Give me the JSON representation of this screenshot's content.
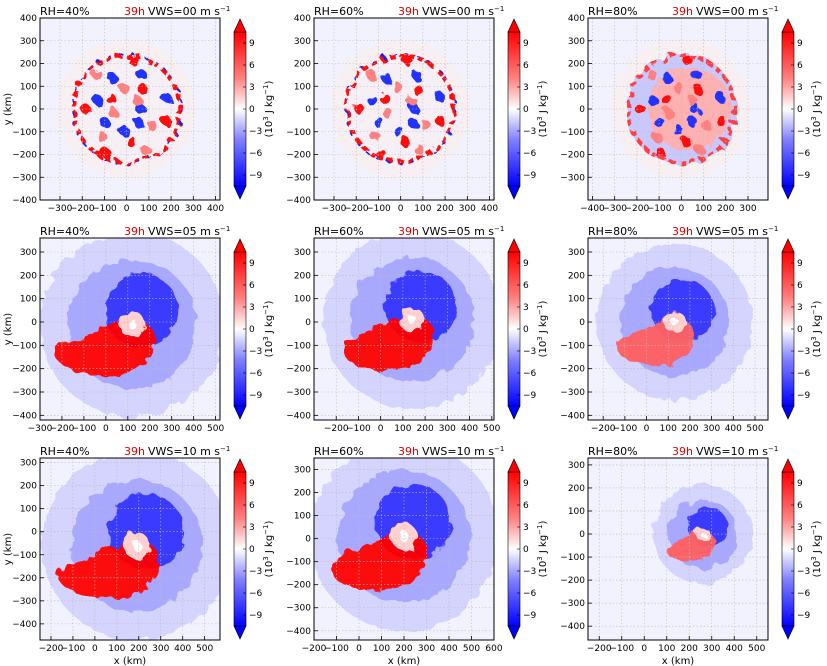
{
  "chart_data": {
    "type": "heatmap",
    "rows": 3,
    "cols": 3,
    "colorbar": {
      "ticks": [
        9,
        6,
        3,
        0,
        -3,
        -6,
        -9
      ],
      "label_base": "(10",
      "label_exp": "3",
      "label_rest": " J kg",
      "label_exp2": "−1",
      "label_close": ")",
      "range": [
        -10.5,
        10.5
      ],
      "colors": {
        "max": "#ff0000",
        "mid": "#ffffff",
        "min": "#0000ff"
      }
    },
    "x_label": "x (km)",
    "y_label": "y (km)",
    "panels": [
      {
        "rh": "RH=40%",
        "time": "39h",
        "vws": "VWS=00 m s",
        "vws_exp": "−1",
        "xlim": [
          -390,
          420
        ],
        "ylim": [
          -400,
          400
        ],
        "xticks": [
          -300,
          -200,
          -100,
          0,
          100,
          200,
          300,
          400
        ],
        "yticks": [
          -400,
          -300,
          -200,
          -100,
          0,
          100,
          200,
          300,
          400
        ],
        "storm": {
          "cx": 0,
          "cy": 0,
          "radius": 250,
          "type": "ring"
        }
      },
      {
        "rh": "RH=60%",
        "time": "39h",
        "vws": "VWS=00 m s",
        "vws_exp": "−1",
        "xlim": [
          -390,
          420
        ],
        "ylim": [
          -400,
          400
        ],
        "xticks": [
          -300,
          -200,
          -100,
          0,
          100,
          200,
          300,
          400
        ],
        "yticks": [
          -400,
          -300,
          -200,
          -100,
          0,
          100,
          200,
          300,
          400
        ],
        "storm": {
          "cx": 0,
          "cy": 0,
          "radius": 250,
          "type": "ring"
        }
      },
      {
        "rh": "RH=80%",
        "time": "39h",
        "vws": "VWS=00 m s",
        "vws_exp": "−1",
        "xlim": [
          -420,
          390
        ],
        "ylim": [
          -400,
          400
        ],
        "xticks": [
          -400,
          -300,
          -200,
          -100,
          0,
          100,
          200,
          300
        ],
        "yticks": [
          -300,
          -200,
          -100,
          0,
          100,
          200,
          300,
          400
        ],
        "storm": {
          "cx": 0,
          "cy": 0,
          "radius": 250,
          "type": "spiral"
        }
      },
      {
        "rh": "RH=40%",
        "time": "39h",
        "vws": "VWS=05 m s",
        "vws_exp": "−1",
        "xlim": [
          -300,
          520
        ],
        "ylim": [
          -420,
          360
        ],
        "xticks": [
          -300,
          -200,
          -100,
          0,
          100,
          200,
          300,
          400,
          500
        ],
        "yticks": [
          -400,
          -300,
          -200,
          -100,
          0,
          100,
          200,
          300
        ],
        "storm": {
          "cx": 120,
          "cy": -10,
          "radius": 420,
          "type": "sheared-heavy"
        }
      },
      {
        "rh": "RH=60%",
        "time": "39h",
        "vws": "VWS=05 m s",
        "vws_exp": "−1",
        "xlim": [
          -300,
          510
        ],
        "ylim": [
          -420,
          360
        ],
        "xticks": [
          -200,
          -100,
          0,
          100,
          200,
          300,
          400,
          500
        ],
        "yticks": [
          -400,
          -300,
          -200,
          -100,
          0,
          100,
          200,
          300
        ],
        "storm": {
          "cx": 140,
          "cy": 10,
          "radius": 400,
          "type": "sheared-tail"
        }
      },
      {
        "rh": "RH=80%",
        "time": "39h",
        "vws": "VWS=05 m s",
        "vws_exp": "−1",
        "xlim": [
          -270,
          560
        ],
        "ylim": [
          -420,
          360
        ],
        "xticks": [
          -200,
          -100,
          0,
          100,
          200,
          300,
          400,
          500
        ],
        "yticks": [
          -400,
          -300,
          -200,
          -100,
          0,
          100,
          200,
          300
        ],
        "storm": {
          "cx": 130,
          "cy": 0,
          "radius": 360,
          "type": "sheared-light"
        }
      },
      {
        "rh": "RH=40%",
        "time": "39h",
        "vws": "VWS=10 m s",
        "vws_exp": "−1",
        "xlim": [
          -250,
          570
        ],
        "ylim": [
          -470,
          320
        ],
        "xticks": [
          -200,
          -100,
          0,
          100,
          200,
          300,
          400,
          500
        ],
        "yticks": [
          -400,
          -300,
          -200,
          -100,
          0,
          100,
          200,
          300
        ],
        "storm": {
          "cx": 190,
          "cy": -60,
          "radius": 430,
          "type": "sheared-heavy"
        }
      },
      {
        "rh": "RH=60%",
        "time": "39h",
        "vws": "VWS=10 m s",
        "vws_exp": "−1",
        "xlim": [
          -200,
          600
        ],
        "ylim": [
          -440,
          350
        ],
        "xticks": [
          -200,
          -100,
          0,
          100,
          200,
          300,
          400,
          500,
          600
        ],
        "yticks": [
          -400,
          -300,
          -200,
          -100,
          0,
          100,
          200,
          300
        ],
        "storm": {
          "cx": 200,
          "cy": 10,
          "radius": 420,
          "type": "sheared-tail"
        }
      },
      {
        "rh": "RH=80%",
        "time": "39h",
        "vws": "VWS=10 m s",
        "vws_exp": "−1",
        "xlim": [
          -250,
          550
        ],
        "ylim": [
          -460,
          330
        ],
        "xticks": [
          -200,
          -100,
          0,
          100,
          200,
          300,
          400,
          500
        ],
        "yticks": [
          -400,
          -300,
          -200,
          -100,
          0,
          100,
          200,
          300
        ],
        "storm": {
          "cx": 260,
          "cy": 0,
          "radius": 220,
          "type": "sheared-light"
        }
      }
    ]
  }
}
